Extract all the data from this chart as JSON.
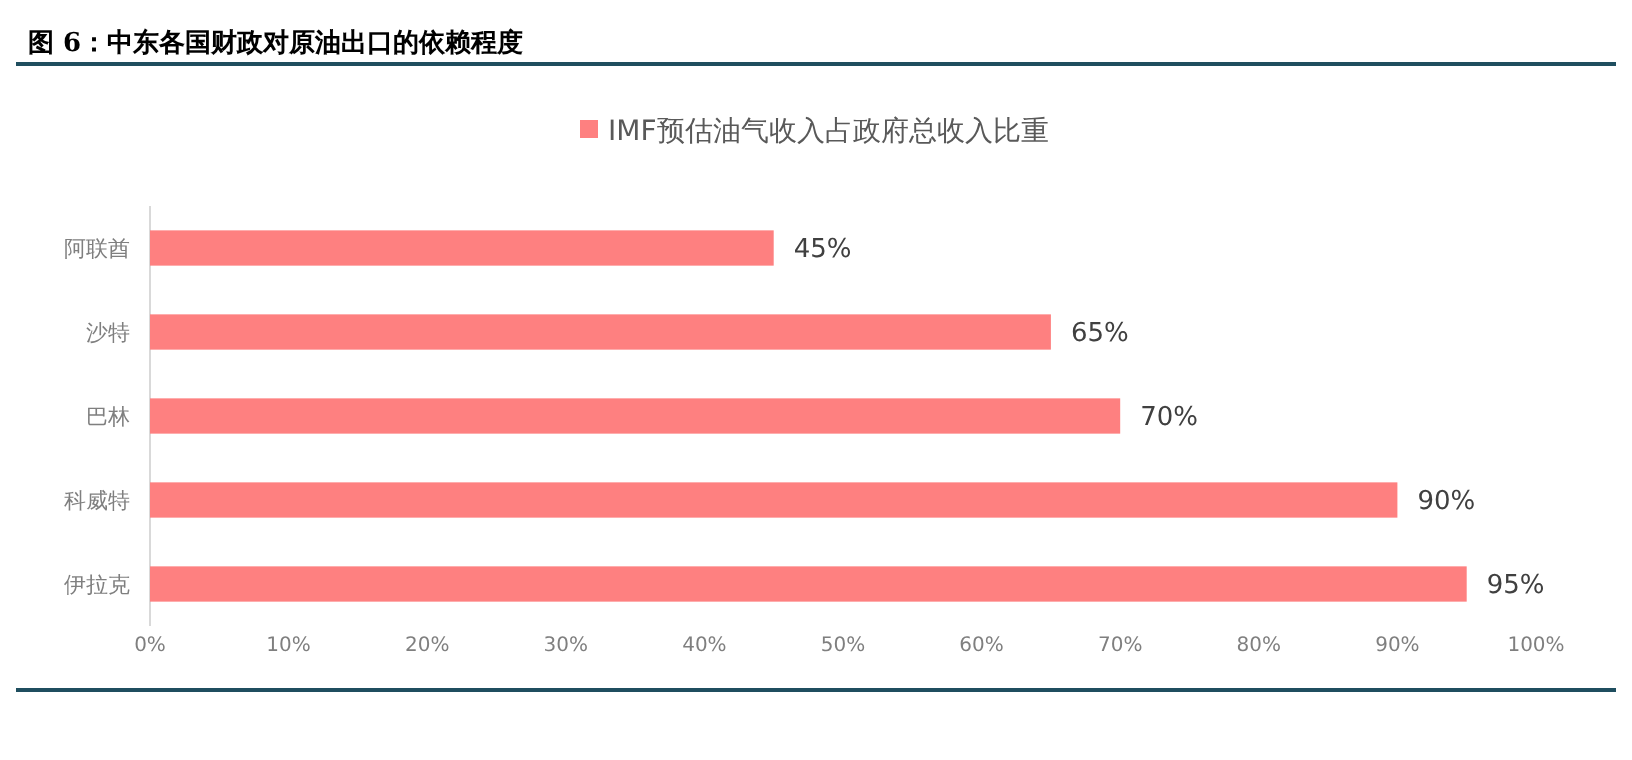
{
  "chart_data": {
    "type": "bar",
    "orientation": "horizontal",
    "title": "图 6：中东各国财政对原油出口的依赖程度",
    "categories": [
      "阿联酋",
      "沙特",
      "巴林",
      "科威特",
      "伊拉克"
    ],
    "series": [
      {
        "name": "IMF预估油气收入占政府总收入比重",
        "color": "#fe8080",
        "values": [
          45,
          65,
          70,
          90,
          95
        ],
        "value_labels": [
          "45%",
          "65%",
          "70%",
          "90%",
          "95%"
        ]
      }
    ],
    "xlim": [
      0,
      100
    ],
    "xticks": [
      {
        "value": 0,
        "label": "0%"
      },
      {
        "value": 10,
        "label": "10%"
      },
      {
        "value": 20,
        "label": "20%"
      },
      {
        "value": 30,
        "label": "30%"
      },
      {
        "value": 40,
        "label": "40%"
      },
      {
        "value": 50,
        "label": "50%"
      },
      {
        "value": 60,
        "label": "60%"
      },
      {
        "value": 70,
        "label": "70%"
      },
      {
        "value": 80,
        "label": "80%"
      },
      {
        "value": 90,
        "label": "90%"
      },
      {
        "value": 100,
        "label": "100%"
      }
    ],
    "legend": "top",
    "grid": false
  }
}
